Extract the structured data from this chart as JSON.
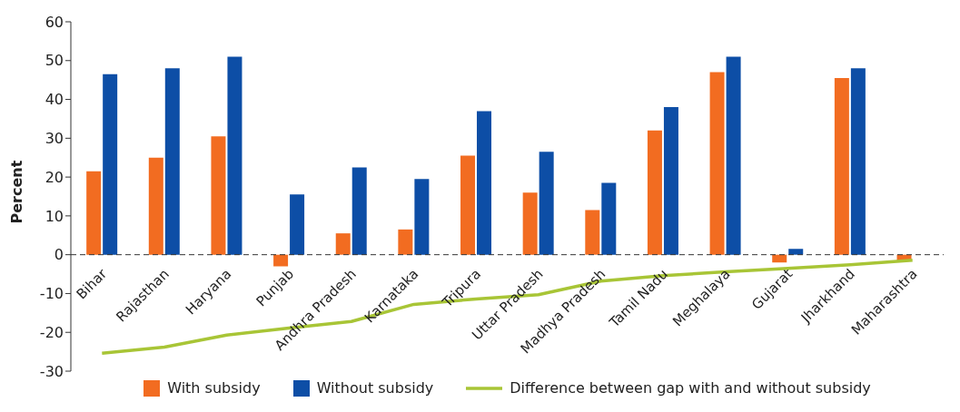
{
  "chart_data": {
    "type": "bar",
    "ylabel": "Percent",
    "categories": [
      "Bihar",
      "Rajasthan",
      "Haryana",
      "Punjab",
      "Andhra Pradesh",
      "Karnataka",
      "Tripura",
      "Uttar Pradesh",
      "Madhya Pradesh",
      "Tamil Nadu",
      "Meghalaya",
      "Gujarat",
      "Jharkhand",
      "Maharashtra"
    ],
    "series": [
      {
        "name": "With subsidy",
        "color": "#f26c21",
        "values": [
          21.5,
          25,
          30.5,
          -3,
          5.5,
          6.5,
          25.5,
          16,
          11.5,
          32,
          47,
          -2,
          45.5,
          -1.5
        ]
      },
      {
        "name": "Without subsidy",
        "color": "#0d4ea6",
        "values": [
          46.5,
          48,
          51,
          15.5,
          22.5,
          19.5,
          37,
          26.5,
          18.5,
          38,
          51,
          1.5,
          48,
          null
        ]
      },
      {
        "name": "Difference between gap with and without subsidy",
        "type": "line",
        "color": "#a8c536",
        "values": [
          -25.4,
          -23.8,
          -20.7,
          -18.9,
          -17.2,
          -12.8,
          -11.4,
          -10.3,
          -6.8,
          -5.4,
          -4.4,
          -3.5,
          -2.6,
          -1.4
        ]
      }
    ],
    "ylim": [
      -30,
      60
    ],
    "yticks": [
      -30,
      -20,
      -10,
      0,
      10,
      20,
      30,
      40,
      50,
      60
    ],
    "ref_lines": [
      {
        "axis": "y",
        "value": 0,
        "color": "#333333",
        "line_style": "dashed"
      }
    ],
    "grid": false,
    "legend": "bottom",
    "marker": "none"
  }
}
